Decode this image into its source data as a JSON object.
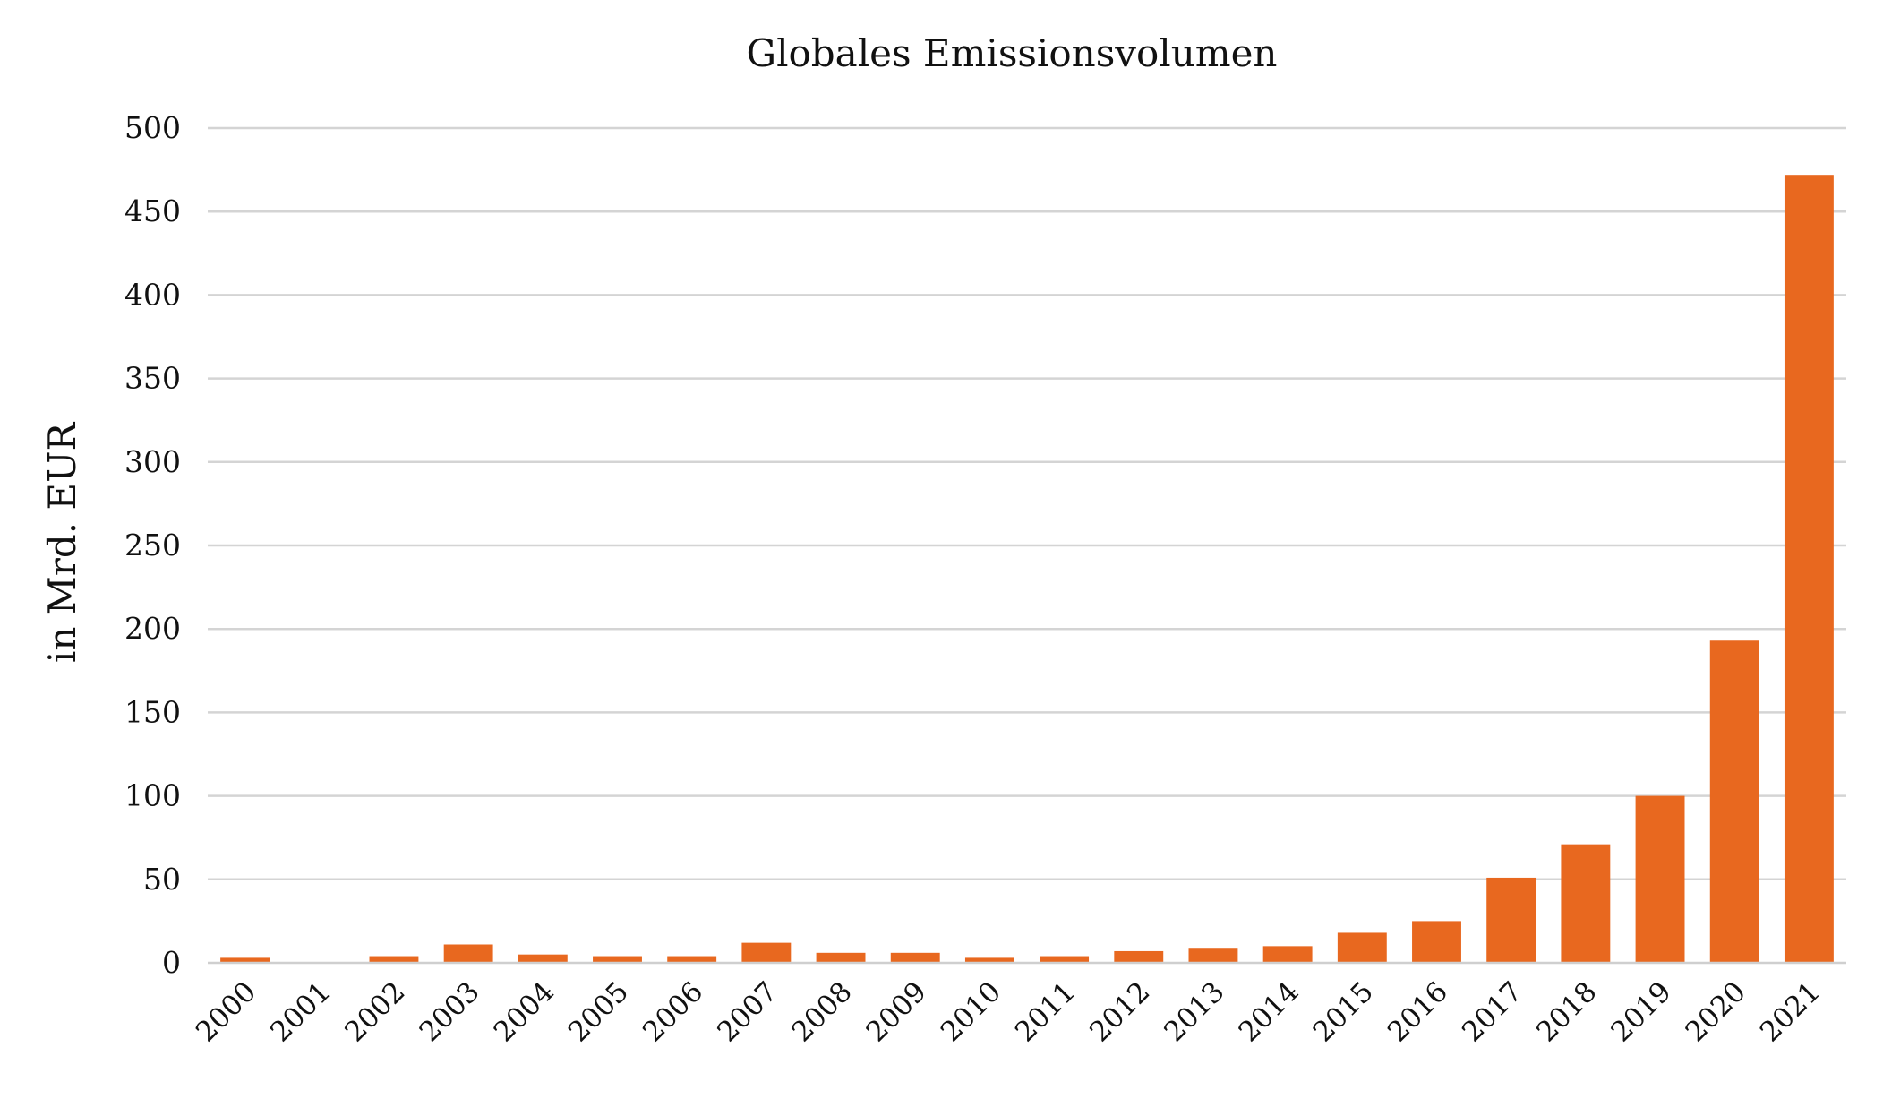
{
  "chart_data": {
    "type": "bar",
    "title": "Globales Emissionsvolumen",
    "xlabel": "",
    "ylabel": "in Mrd. EUR",
    "ylim": [
      0,
      500
    ],
    "yticks": [
      "0",
      "50",
      "100",
      "150",
      "200",
      "250",
      "300",
      "350",
      "400",
      "450",
      "500"
    ],
    "categories": [
      "2000",
      "2001",
      "2002",
      "2003",
      "2004",
      "2005",
      "2006",
      "2007",
      "2008",
      "2009",
      "2010",
      "2011",
      "2012",
      "2013",
      "2014",
      "2015",
      "2016",
      "2017",
      "2018",
      "2019",
      "2020",
      "2021"
    ],
    "values": [
      3,
      0,
      4,
      11,
      5,
      4,
      4,
      12,
      6,
      6,
      3,
      4,
      7,
      9,
      10,
      18,
      25,
      51,
      71,
      100,
      193,
      472
    ],
    "bar_color": "#E8681F",
    "grid": true,
    "legend": "none"
  }
}
